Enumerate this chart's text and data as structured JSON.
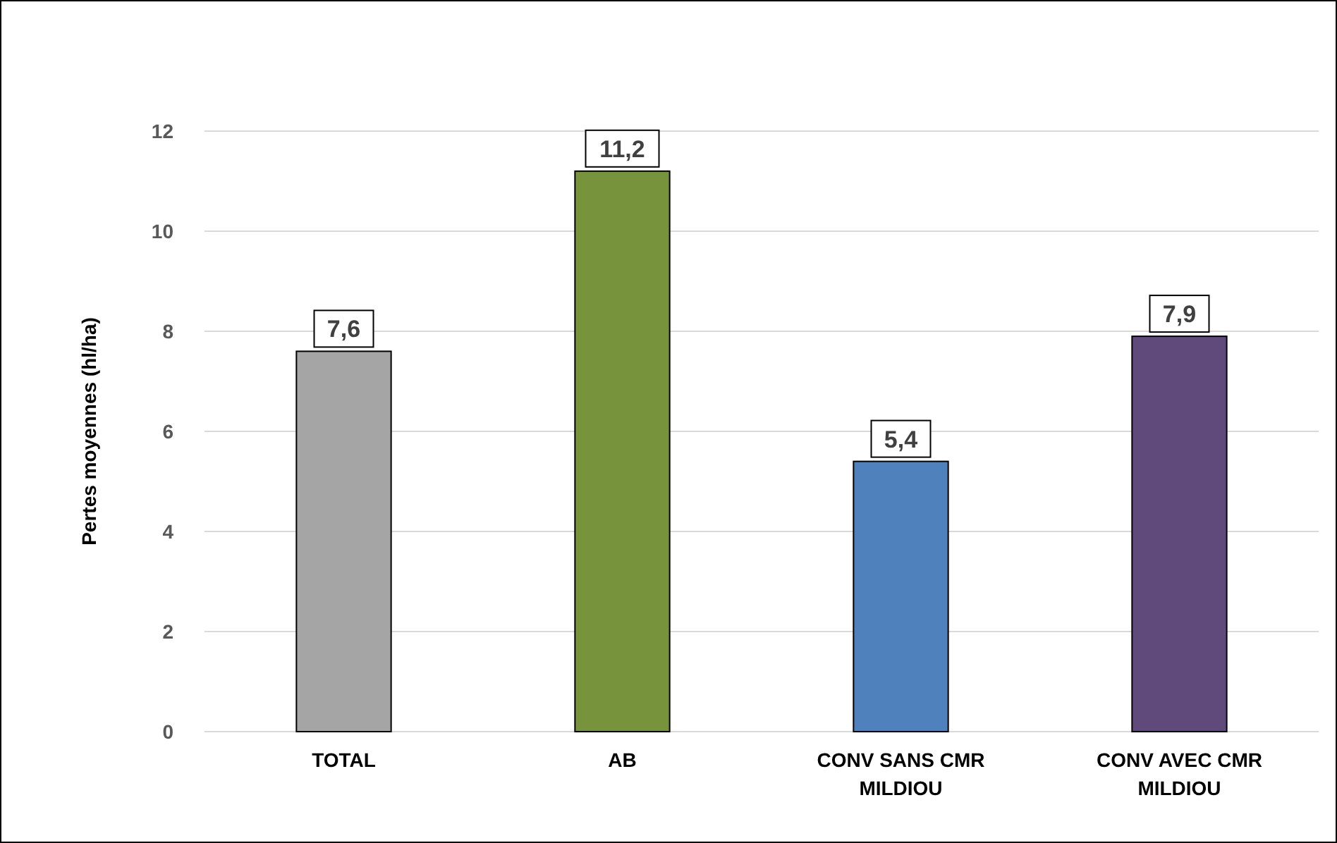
{
  "chart_data": {
    "type": "bar",
    "ylabel": "Pertes moyennes (hl/ha)",
    "categories": [
      "TOTAL",
      "AB",
      "CONV SANS CMR MILDIOU",
      "CONV AVEC CMR MILDIOU"
    ],
    "values": [
      7.6,
      11.2,
      5.4,
      7.9
    ],
    "colors": [
      "#a5a5a5",
      "#77933c",
      "#4f81bd",
      "#604a7b"
    ],
    "value_labels": [
      "7,6",
      "11,2",
      "5,4",
      "7,9"
    ],
    "ylim": [
      0,
      12
    ],
    "yticks": [
      0,
      2,
      4,
      6,
      8,
      10,
      12
    ],
    "grid": "y"
  }
}
